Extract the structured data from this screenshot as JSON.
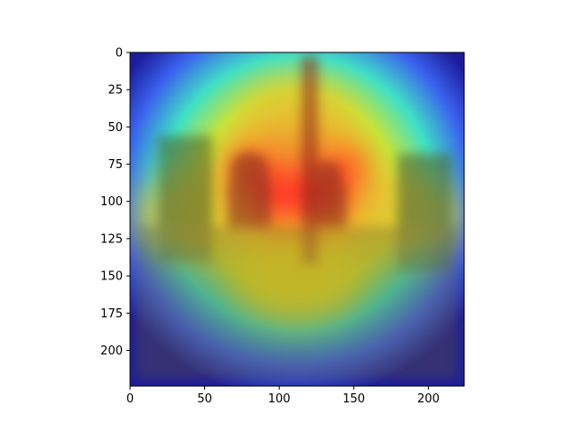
{
  "chart_data": {
    "type": "heatmap",
    "title": "",
    "xlabel": "",
    "ylabel": "",
    "xlim": [
      0,
      224
    ],
    "ylim": [
      224,
      0
    ],
    "x_ticks": [
      0,
      50,
      100,
      150,
      200
    ],
    "y_ticks": [
      0,
      25,
      50,
      75,
      100,
      125,
      150,
      175,
      200
    ],
    "grid": false,
    "colormap": "jet",
    "overlay": "saliency heatmap over photograph of a crowded piazza with an obelisk and twin domed churches",
    "hotspots": [
      {
        "x": 112,
        "y": 85,
        "intensity": 1.0
      },
      {
        "x": 112,
        "y": 150,
        "intensity": 0.72
      },
      {
        "x": 40,
        "y": 110,
        "intensity": 0.6
      },
      {
        "x": 185,
        "y": 110,
        "intensity": 0.6
      },
      {
        "x": 112,
        "y": 45,
        "intensity": 0.55
      }
    ]
  },
  "colors": {
    "hot": "#ff3a2a",
    "warm": "#f2e426",
    "mid": "#3ee0c8",
    "cool": "#3a5cff",
    "cold": "#1a1a9a"
  }
}
